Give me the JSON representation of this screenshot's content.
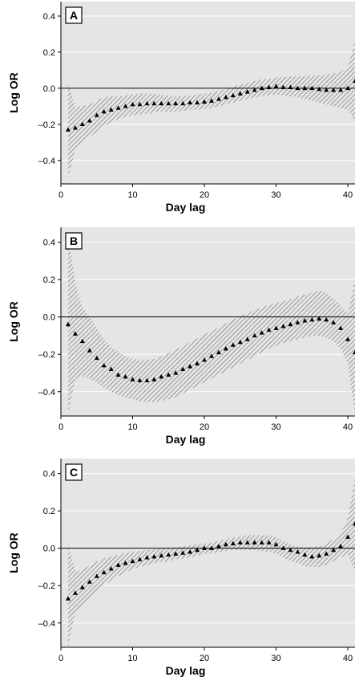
{
  "chart_data": [
    {
      "type": "scatter",
      "panel_label": "A",
      "xlabel": "Day lag",
      "ylabel": "Log OR",
      "xlim": [
        0,
        41
      ],
      "ylim": [
        -0.53,
        0.48
      ],
      "xticks": [
        0,
        10,
        20,
        30,
        40
      ],
      "xtick_labels": [
        "0",
        "10",
        "20",
        "30",
        "40"
      ],
      "yticks": [
        -0.4,
        -0.2,
        0.0,
        0.2,
        0.4
      ],
      "ytick_labels": [
        "–0.4",
        "–0.2",
        "0.0",
        "0.2",
        "0.4"
      ],
      "reference_line": 0.0,
      "grid": true,
      "background": "#e5e5e5",
      "x": [
        1,
        2,
        3,
        4,
        5,
        6,
        7,
        8,
        9,
        10,
        11,
        12,
        13,
        14,
        15,
        16,
        17,
        18,
        19,
        20,
        21,
        22,
        23,
        24,
        25,
        26,
        27,
        28,
        29,
        30,
        31,
        32,
        33,
        34,
        35,
        36,
        37,
        38,
        39,
        40,
        41
      ],
      "values": [
        -0.23,
        -0.22,
        -0.2,
        -0.18,
        -0.15,
        -0.13,
        -0.12,
        -0.11,
        -0.1,
        -0.09,
        -0.09,
        -0.085,
        -0.085,
        -0.085,
        -0.085,
        -0.085,
        -0.085,
        -0.08,
        -0.08,
        -0.075,
        -0.07,
        -0.06,
        -0.05,
        -0.04,
        -0.03,
        -0.02,
        -0.01,
        0.0,
        0.005,
        0.01,
        0.005,
        0.005,
        0.0,
        0.0,
        0.0,
        -0.005,
        -0.01,
        -0.01,
        -0.01,
        0.0,
        0.04
      ],
      "lower": [
        -0.5,
        -0.34,
        -0.3,
        -0.27,
        -0.24,
        -0.21,
        -0.19,
        -0.17,
        -0.16,
        -0.15,
        -0.145,
        -0.14,
        -0.135,
        -0.13,
        -0.13,
        -0.13,
        -0.125,
        -0.12,
        -0.12,
        -0.115,
        -0.11,
        -0.1,
        -0.09,
        -0.08,
        -0.07,
        -0.06,
        -0.05,
        -0.045,
        -0.04,
        -0.035,
        -0.04,
        -0.045,
        -0.05,
        -0.06,
        -0.07,
        -0.08,
        -0.09,
        -0.1,
        -0.11,
        -0.12,
        -0.18
      ],
      "upper": [
        0.03,
        -0.1,
        -0.1,
        -0.09,
        -0.07,
        -0.05,
        -0.045,
        -0.045,
        -0.04,
        -0.035,
        -0.03,
        -0.03,
        -0.03,
        -0.035,
        -0.04,
        -0.045,
        -0.045,
        -0.04,
        -0.035,
        -0.03,
        -0.025,
        -0.015,
        -0.005,
        0.01,
        0.02,
        0.03,
        0.04,
        0.05,
        0.05,
        0.06,
        0.06,
        0.065,
        0.065,
        0.065,
        0.07,
        0.07,
        0.075,
        0.08,
        0.09,
        0.12,
        0.26
      ]
    },
    {
      "type": "scatter",
      "panel_label": "B",
      "xlabel": "Day lag",
      "ylabel": "Log OR",
      "xlim": [
        0,
        41
      ],
      "ylim": [
        -0.53,
        0.48
      ],
      "xticks": [
        0,
        10,
        20,
        30,
        40
      ],
      "xtick_labels": [
        "0",
        "10",
        "20",
        "30",
        "40"
      ],
      "yticks": [
        -0.4,
        -0.2,
        0.0,
        0.2,
        0.4
      ],
      "ytick_labels": [
        "–0.4",
        "–0.2",
        "0.0",
        "0.2",
        "0.4"
      ],
      "reference_line": 0.0,
      "grid": true,
      "background": "#e5e5e5",
      "x": [
        1,
        2,
        3,
        4,
        5,
        6,
        7,
        8,
        9,
        10,
        11,
        12,
        13,
        14,
        15,
        16,
        17,
        18,
        19,
        20,
        21,
        22,
        23,
        24,
        25,
        26,
        27,
        28,
        29,
        30,
        31,
        32,
        33,
        34,
        35,
        36,
        37,
        38,
        39,
        40,
        41
      ],
      "values": [
        -0.04,
        -0.09,
        -0.13,
        -0.18,
        -0.22,
        -0.26,
        -0.28,
        -0.31,
        -0.32,
        -0.335,
        -0.34,
        -0.34,
        -0.335,
        -0.32,
        -0.31,
        -0.3,
        -0.28,
        -0.265,
        -0.25,
        -0.23,
        -0.21,
        -0.19,
        -0.17,
        -0.15,
        -0.135,
        -0.12,
        -0.1,
        -0.085,
        -0.07,
        -0.06,
        -0.05,
        -0.04,
        -0.03,
        -0.02,
        -0.015,
        -0.01,
        -0.015,
        -0.03,
        -0.06,
        -0.12,
        -0.19
      ],
      "lower": [
        -0.52,
        -0.33,
        -0.32,
        -0.33,
        -0.35,
        -0.38,
        -0.4,
        -0.42,
        -0.43,
        -0.44,
        -0.45,
        -0.455,
        -0.455,
        -0.45,
        -0.44,
        -0.43,
        -0.41,
        -0.39,
        -0.37,
        -0.35,
        -0.33,
        -0.31,
        -0.29,
        -0.27,
        -0.25,
        -0.23,
        -0.21,
        -0.19,
        -0.17,
        -0.155,
        -0.14,
        -0.13,
        -0.12,
        -0.11,
        -0.1,
        -0.1,
        -0.11,
        -0.13,
        -0.17,
        -0.25,
        -0.52
      ],
      "upper": [
        0.44,
        0.18,
        0.05,
        0.0,
        -0.06,
        -0.12,
        -0.16,
        -0.19,
        -0.21,
        -0.225,
        -0.23,
        -0.23,
        -0.225,
        -0.21,
        -0.195,
        -0.175,
        -0.155,
        -0.135,
        -0.115,
        -0.095,
        -0.075,
        -0.055,
        -0.035,
        -0.015,
        0.005,
        0.02,
        0.035,
        0.05,
        0.065,
        0.075,
        0.085,
        0.095,
        0.11,
        0.12,
        0.13,
        0.14,
        0.13,
        0.1,
        0.06,
        0.02,
        0.2
      ]
    },
    {
      "type": "scatter",
      "panel_label": "C",
      "xlabel": "Day lag",
      "ylabel": "Log OR",
      "xlim": [
        0,
        41
      ],
      "ylim": [
        -0.53,
        0.48
      ],
      "xticks": [
        0,
        10,
        20,
        30,
        40
      ],
      "xtick_labels": [
        "0",
        "10",
        "20",
        "30",
        "40"
      ],
      "yticks": [
        -0.4,
        -0.2,
        0.0,
        0.2,
        0.4
      ],
      "ytick_labels": [
        "–0.4",
        "–0.2",
        "0.0",
        "0.2",
        "0.4"
      ],
      "reference_line": 0.0,
      "grid": true,
      "background": "#e5e5e5",
      "x": [
        1,
        2,
        3,
        4,
        5,
        6,
        7,
        8,
        9,
        10,
        11,
        12,
        13,
        14,
        15,
        16,
        17,
        18,
        19,
        20,
        21,
        22,
        23,
        24,
        25,
        26,
        27,
        28,
        29,
        30,
        31,
        32,
        33,
        34,
        35,
        36,
        37,
        38,
        39,
        40,
        41
      ],
      "values": [
        -0.27,
        -0.24,
        -0.21,
        -0.18,
        -0.15,
        -0.13,
        -0.11,
        -0.09,
        -0.08,
        -0.07,
        -0.06,
        -0.05,
        -0.045,
        -0.04,
        -0.035,
        -0.03,
        -0.025,
        -0.02,
        -0.01,
        0.0,
        0.0,
        0.01,
        0.02,
        0.025,
        0.03,
        0.03,
        0.03,
        0.03,
        0.03,
        0.02,
        0.0,
        -0.01,
        -0.02,
        -0.035,
        -0.045,
        -0.04,
        -0.03,
        -0.01,
        0.01,
        0.06,
        0.13
      ],
      "lower": [
        -0.53,
        -0.35,
        -0.3,
        -0.27,
        -0.23,
        -0.2,
        -0.17,
        -0.15,
        -0.13,
        -0.11,
        -0.1,
        -0.09,
        -0.08,
        -0.075,
        -0.07,
        -0.06,
        -0.055,
        -0.05,
        -0.04,
        -0.03,
        -0.03,
        -0.02,
        -0.015,
        -0.01,
        -0.01,
        -0.01,
        -0.01,
        -0.015,
        -0.02,
        -0.03,
        -0.05,
        -0.07,
        -0.08,
        -0.095,
        -0.1,
        -0.1,
        -0.09,
        -0.07,
        -0.05,
        -0.03,
        -0.13
      ],
      "upper": [
        0.02,
        -0.12,
        -0.12,
        -0.09,
        -0.07,
        -0.055,
        -0.045,
        -0.035,
        -0.025,
        -0.02,
        -0.015,
        -0.01,
        -0.005,
        0.0,
        0.0,
        0.005,
        0.01,
        0.015,
        0.02,
        0.025,
        0.03,
        0.04,
        0.05,
        0.055,
        0.065,
        0.07,
        0.07,
        0.07,
        0.07,
        0.06,
        0.04,
        0.02,
        0.01,
        0.005,
        0.005,
        0.01,
        0.02,
        0.05,
        0.08,
        0.16,
        0.38
      ]
    }
  ]
}
